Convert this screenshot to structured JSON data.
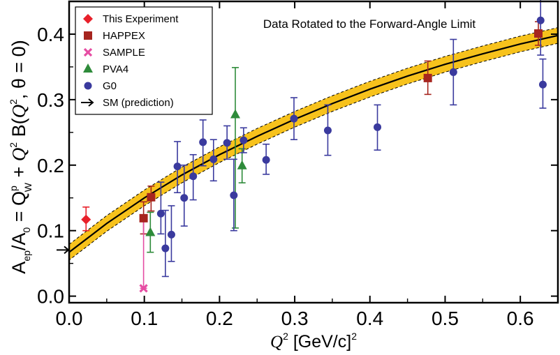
{
  "chart_data": {
    "type": "scatter",
    "title": "Data Rotated to the Forward-Angle Limit",
    "ylabel": {
      "main": "A",
      "ep": "ep",
      "slash": "/A",
      "zero": "0",
      "eq": " = Q",
      "p": "p",
      "w": "W",
      "plus": " + ",
      "q": "Q",
      "two": "2",
      "b": " B(",
      "q2": "Q",
      "two2": "2",
      "tail": ", θ = 0)"
    },
    "xlabel": {
      "q": "Q",
      "two": "2",
      "unit": " [GeV/c]",
      "two2": "2"
    },
    "xlim": [
      0.0,
      0.65
    ],
    "ylim": [
      -0.01,
      0.45
    ],
    "xticks": [
      0.0,
      0.1,
      0.2,
      0.3,
      0.4,
      0.5,
      0.6
    ],
    "xtick_labels": [
      "0.0",
      "0.1",
      "0.2",
      "0.3",
      "0.4",
      "0.5",
      "0.6"
    ],
    "yticks": [
      0.0,
      0.1,
      0.2,
      0.3,
      0.4
    ],
    "ytick_labels": [
      "0.0",
      "0.1",
      "0.2",
      "0.3",
      "0.4"
    ],
    "grid": false,
    "legend_position": "top-left",
    "legend": [
      {
        "label": "This Experiment",
        "marker": "diamond",
        "color": "#e8202a"
      },
      {
        "label": "HAPPEX",
        "marker": "square",
        "color": "#a6251f"
      },
      {
        "label": "SAMPLE",
        "marker": "x",
        "color": "#e64da3"
      },
      {
        "label": "PVA4",
        "marker": "triangle",
        "color": "#2e8b3a"
      },
      {
        "label": "G0",
        "marker": "circle",
        "color": "#3a3a9e"
      },
      {
        "label": "SM (prediction)",
        "marker": "arrow",
        "color": "#000000"
      }
    ],
    "series": [
      {
        "name": "This Experiment",
        "marker": "diamond",
        "color": "#e8202a",
        "points": [
          {
            "x": 0.0225,
            "y": 0.117,
            "lo": 0.1,
            "hi": 0.136
          }
        ]
      },
      {
        "name": "HAPPEX",
        "marker": "square",
        "color": "#a6251f",
        "points": [
          {
            "x": 0.099,
            "y": 0.119,
            "lo": 0.095,
            "hi": 0.144
          },
          {
            "x": 0.109,
            "y": 0.151,
            "lo": 0.13,
            "hi": 0.168
          },
          {
            "x": 0.477,
            "y": 0.333,
            "lo": 0.308,
            "hi": 0.359
          },
          {
            "x": 0.624,
            "y": 0.401,
            "lo": 0.383,
            "hi": 0.419
          }
        ]
      },
      {
        "name": "SAMPLE",
        "marker": "x",
        "color": "#e64da3",
        "points": [
          {
            "x": 0.099,
            "y": 0.012,
            "lo": 0.012,
            "hi": 0.12
          }
        ]
      },
      {
        "name": "PVA4",
        "marker": "triangle",
        "color": "#2e8b3a",
        "points": [
          {
            "x": 0.108,
            "y": 0.097,
            "lo": 0.067,
            "hi": 0.128
          },
          {
            "x": 0.221,
            "y": 0.277,
            "lo": 0.104,
            "hi": 0.349
          },
          {
            "x": 0.23,
            "y": 0.199,
            "lo": 0.173,
            "hi": 0.225
          }
        ]
      },
      {
        "name": "G0",
        "marker": "circle",
        "color": "#3a3a9e",
        "points": [
          {
            "x": 0.122,
            "y": 0.126,
            "lo": 0.095,
            "hi": 0.174
          },
          {
            "x": 0.128,
            "y": 0.073,
            "lo": 0.03,
            "hi": 0.131
          },
          {
            "x": 0.136,
            "y": 0.094,
            "lo": 0.053,
            "hi": 0.138
          },
          {
            "x": 0.144,
            "y": 0.198,
            "lo": 0.158,
            "hi": 0.236
          },
          {
            "x": 0.153,
            "y": 0.15,
            "lo": 0.107,
            "hi": 0.2
          },
          {
            "x": 0.165,
            "y": 0.183,
            "lo": 0.147,
            "hi": 0.216
          },
          {
            "x": 0.178,
            "y": 0.235,
            "lo": 0.199,
            "hi": 0.269
          },
          {
            "x": 0.192,
            "y": 0.209,
            "lo": 0.176,
            "hi": 0.239
          },
          {
            "x": 0.21,
            "y": 0.234,
            "lo": 0.209,
            "hi": 0.26
          },
          {
            "x": 0.219,
            "y": 0.154,
            "lo": 0.1,
            "hi": 0.209
          },
          {
            "x": 0.232,
            "y": 0.238,
            "lo": 0.219,
            "hi": 0.257
          },
          {
            "x": 0.262,
            "y": 0.208,
            "lo": 0.186,
            "hi": 0.232
          },
          {
            "x": 0.299,
            "y": 0.271,
            "lo": 0.239,
            "hi": 0.303
          },
          {
            "x": 0.344,
            "y": 0.253,
            "lo": 0.215,
            "hi": 0.292
          },
          {
            "x": 0.41,
            "y": 0.258,
            "lo": 0.223,
            "hi": 0.292
          },
          {
            "x": 0.511,
            "y": 0.342,
            "lo": 0.292,
            "hi": 0.392
          },
          {
            "x": 0.627,
            "y": 0.421,
            "lo": 0.368,
            "hi": 0.471
          },
          {
            "x": 0.63,
            "y": 0.323,
            "lo": 0.287,
            "hi": 0.362
          }
        ]
      }
    ],
    "fit_curve": {
      "x": [
        0.0,
        0.05,
        0.1,
        0.15,
        0.2,
        0.25,
        0.3,
        0.35,
        0.4,
        0.45,
        0.5,
        0.55,
        0.6,
        0.65
      ],
      "y": [
        0.067,
        0.111,
        0.15,
        0.185,
        0.216,
        0.244,
        0.27,
        0.294,
        0.316,
        0.336,
        0.354,
        0.37,
        0.385,
        0.398
      ],
      "band_half_width": 0.012,
      "line_color": "#000000",
      "band_color": "#f7c21c"
    },
    "sm_prediction": {
      "x": 0.0,
      "y": 0.0705
    }
  }
}
